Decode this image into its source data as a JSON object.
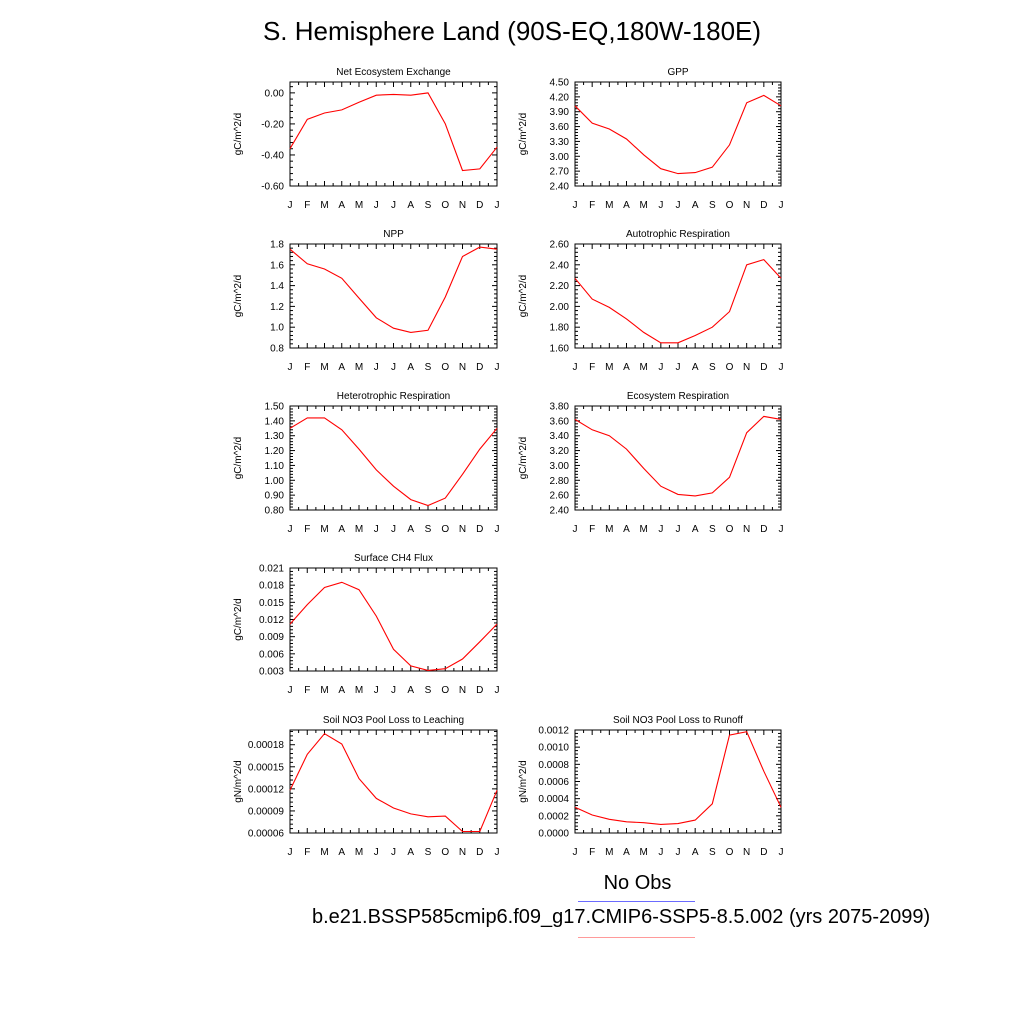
{
  "title": "S. Hemisphere Land (90S-EQ,180W-180E)",
  "legend": {
    "obs_label": "No Obs",
    "obs_color": "#6b6bff",
    "case_label": "b.e21.BSSP585cmip6.f09_g17.CMIP6-SSP5-8.5.002 (yrs 2075-2099)",
    "case_color": "#ff9a9a"
  },
  "line_color": "#ff0000",
  "chart_data": [
    {
      "type": "line",
      "title": "Net Ecosystem Exchange",
      "ylabel": "gC/m^2/d",
      "categories": [
        "J",
        "F",
        "M",
        "A",
        "M",
        "J",
        "J",
        "A",
        "S",
        "O",
        "N",
        "D",
        "J"
      ],
      "ylim": [
        -0.6,
        0.07
      ],
      "yticks": [
        -0.6,
        -0.4,
        -0.2,
        0.0
      ],
      "ytick_labels": [
        "-0.60",
        "-0.40",
        "-0.20",
        "0.00"
      ],
      "values": [
        -0.36,
        -0.17,
        -0.13,
        -0.11,
        -0.06,
        -0.015,
        -0.01,
        -0.015,
        0.0,
        -0.2,
        -0.5,
        -0.49,
        -0.35
      ]
    },
    {
      "type": "line",
      "title": "GPP",
      "ylabel": "gC/m^2/d",
      "categories": [
        "J",
        "F",
        "M",
        "A",
        "M",
        "J",
        "J",
        "A",
        "S",
        "O",
        "N",
        "D",
        "J"
      ],
      "ylim": [
        2.4,
        4.5
      ],
      "yticks": [
        2.4,
        2.7,
        3.0,
        3.3,
        3.6,
        3.9,
        4.2,
        4.5
      ],
      "ytick_labels": [
        "2.40",
        "2.70",
        "3.00",
        "3.30",
        "3.60",
        "3.90",
        "4.20",
        "4.50"
      ],
      "values": [
        4.02,
        3.67,
        3.55,
        3.35,
        3.03,
        2.75,
        2.65,
        2.67,
        2.78,
        3.23,
        4.08,
        4.23,
        4.02
      ]
    },
    {
      "type": "line",
      "title": "NPP",
      "ylabel": "gC/m^2/d",
      "categories": [
        "J",
        "F",
        "M",
        "A",
        "M",
        "J",
        "J",
        "A",
        "S",
        "O",
        "N",
        "D",
        "J"
      ],
      "ylim": [
        0.8,
        1.8
      ],
      "yticks": [
        0.8,
        1.0,
        1.2,
        1.4,
        1.6,
        1.8
      ],
      "ytick_labels": [
        "0.8",
        "1.0",
        "1.2",
        "1.4",
        "1.6",
        "1.8"
      ],
      "values": [
        1.75,
        1.61,
        1.56,
        1.47,
        1.28,
        1.09,
        0.99,
        0.95,
        0.97,
        1.29,
        1.68,
        1.77,
        1.75
      ]
    },
    {
      "type": "line",
      "title": "Autotrophic Respiration",
      "ylabel": "gC/m^2/d",
      "categories": [
        "J",
        "F",
        "M",
        "A",
        "M",
        "J",
        "J",
        "A",
        "S",
        "O",
        "N",
        "D",
        "J"
      ],
      "ylim": [
        1.6,
        2.6
      ],
      "yticks": [
        1.6,
        1.8,
        2.0,
        2.2,
        2.4,
        2.6
      ],
      "ytick_labels": [
        "1.60",
        "1.80",
        "2.00",
        "2.20",
        "2.40",
        "2.60"
      ],
      "values": [
        2.27,
        2.07,
        1.99,
        1.88,
        1.75,
        1.65,
        1.65,
        1.72,
        1.8,
        1.95,
        2.4,
        2.45,
        2.27
      ]
    },
    {
      "type": "line",
      "title": "Heterotrophic Respiration",
      "ylabel": "gC/m^2/d",
      "categories": [
        "J",
        "F",
        "M",
        "A",
        "M",
        "J",
        "J",
        "A",
        "S",
        "O",
        "N",
        "D",
        "J"
      ],
      "ylim": [
        0.8,
        1.5
      ],
      "yticks": [
        0.8,
        0.9,
        1.0,
        1.1,
        1.2,
        1.3,
        1.4,
        1.5
      ],
      "ytick_labels": [
        "0.80",
        "0.90",
        "1.00",
        "1.10",
        "1.20",
        "1.30",
        "1.40",
        "1.50"
      ],
      "values": [
        1.35,
        1.42,
        1.42,
        1.34,
        1.21,
        1.07,
        0.96,
        0.87,
        0.83,
        0.88,
        1.04,
        1.21,
        1.35
      ]
    },
    {
      "type": "line",
      "title": "Ecosystem Respiration",
      "ylabel": "gC/m^2/d",
      "categories": [
        "J",
        "F",
        "M",
        "A",
        "M",
        "J",
        "J",
        "A",
        "S",
        "O",
        "N",
        "D",
        "J"
      ],
      "ylim": [
        2.4,
        3.8
      ],
      "yticks": [
        2.4,
        2.6,
        2.8,
        3.0,
        3.2,
        3.4,
        3.6,
        3.8
      ],
      "ytick_labels": [
        "2.40",
        "2.60",
        "2.80",
        "3.00",
        "3.20",
        "3.40",
        "3.60",
        "3.80"
      ],
      "values": [
        3.62,
        3.48,
        3.4,
        3.22,
        2.96,
        2.72,
        2.61,
        2.59,
        2.63,
        2.84,
        3.44,
        3.66,
        3.62
      ]
    },
    {
      "type": "line",
      "title": "Surface CH4 Flux",
      "ylabel": "gC/m^2/d",
      "categories": [
        "J",
        "F",
        "M",
        "A",
        "M",
        "J",
        "J",
        "A",
        "S",
        "O",
        "N",
        "D",
        "J"
      ],
      "ylim": [
        0.003,
        0.021
      ],
      "yticks": [
        0.003,
        0.006,
        0.009,
        0.012,
        0.015,
        0.018,
        0.021
      ],
      "ytick_labels": [
        "0.003",
        "0.006",
        "0.009",
        "0.012",
        "0.015",
        "0.018",
        "0.021"
      ],
      "values": [
        0.0112,
        0.0146,
        0.0176,
        0.0185,
        0.0172,
        0.0126,
        0.0068,
        0.0039,
        0.0031,
        0.0034,
        0.0051,
        0.0081,
        0.0112
      ]
    },
    {
      "type": "line",
      "title": "Soil NO3 Pool Loss to Leaching",
      "ylabel": "gN/m^2/d",
      "categories": [
        "J",
        "F",
        "M",
        "A",
        "M",
        "J",
        "J",
        "A",
        "S",
        "O",
        "N",
        "D",
        "J"
      ],
      "ylim": [
        6e-05,
        0.0002
      ],
      "yticks": [
        6e-05,
        9e-05,
        0.00012,
        0.00015,
        0.00018
      ],
      "ytick_labels": [
        "0.00006",
        "0.00009",
        "0.00012",
        "0.00015",
        "0.00018"
      ],
      "values": [
        0.000118,
        0.000167,
        0.000195,
        0.000181,
        0.000134,
        0.000107,
        9.4e-05,
        8.6e-05,
        8.2e-05,
        8.3e-05,
        6.2e-05,
        6.2e-05,
        0.000118
      ]
    },
    {
      "type": "line",
      "title": "Soil NO3 Pool Loss to Runoff",
      "ylabel": "gN/m^2/d",
      "categories": [
        "J",
        "F",
        "M",
        "A",
        "M",
        "J",
        "J",
        "A",
        "S",
        "O",
        "N",
        "D",
        "J"
      ],
      "ylim": [
        0.0,
        0.0012
      ],
      "yticks": [
        0.0,
        0.0002,
        0.0004,
        0.0006,
        0.0008,
        0.001,
        0.0012
      ],
      "ytick_labels": [
        "0.0000",
        "0.0002",
        "0.0004",
        "0.0006",
        "0.0008",
        "0.0010",
        "0.0012"
      ],
      "values": [
        0.0003,
        0.00021,
        0.00016,
        0.00013,
        0.00012,
        0.0001,
        0.00011,
        0.00015,
        0.00034,
        0.00114,
        0.00118,
        0.00072,
        0.0003
      ]
    }
  ]
}
